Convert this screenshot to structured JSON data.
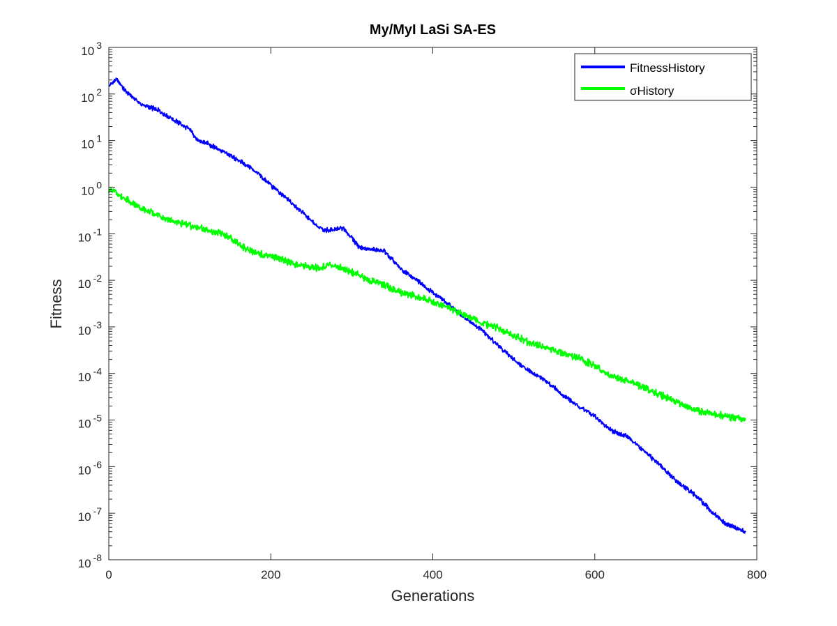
{
  "chart_data": {
    "type": "line",
    "title": "My/MyI LaSi SA-ES",
    "xlabel": "Generations",
    "ylabel": "Fitness",
    "xlim": [
      0,
      800
    ],
    "ylim": [
      1e-08,
      1000
    ],
    "yscale": "log",
    "grid": false,
    "legend_position": "top-right",
    "x_ticks": [
      "0",
      "200",
      "400",
      "600",
      "800"
    ],
    "y_ticks": [
      {
        "base": "10",
        "exp": "-8"
      },
      {
        "base": "10",
        "exp": "-7"
      },
      {
        "base": "10",
        "exp": "-6"
      },
      {
        "base": "10",
        "exp": "-5"
      },
      {
        "base": "10",
        "exp": "-4"
      },
      {
        "base": "10",
        "exp": "-3"
      },
      {
        "base": "10",
        "exp": "-2"
      },
      {
        "base": "10",
        "exp": "-1"
      },
      {
        "base": "10",
        "exp": "0"
      },
      {
        "base": "10",
        "exp": "1"
      },
      {
        "base": "10",
        "exp": "2"
      },
      {
        "base": "10",
        "exp": "3"
      }
    ],
    "series": [
      {
        "name": "FitnessHistory",
        "legend_label": "FitnessHistory",
        "color": "#0000ff",
        "x": [
          0,
          10,
          20,
          40,
          60,
          80,
          100,
          110,
          120,
          140,
          160,
          180,
          200,
          220,
          240,
          260,
          270,
          290,
          300,
          310,
          340,
          360,
          380,
          400,
          420,
          440,
          460,
          480,
          500,
          520,
          540,
          560,
          580,
          600,
          620,
          640,
          660,
          680,
          700,
          720,
          740,
          760,
          786
        ],
        "y": [
          150,
          210,
          120,
          60,
          45,
          28,
          17,
          10,
          9,
          6,
          3.8,
          2.3,
          1.1,
          0.55,
          0.28,
          0.13,
          0.12,
          0.13,
          0.08,
          0.05,
          0.042,
          0.018,
          0.01,
          0.0055,
          0.003,
          0.0015,
          0.0009,
          0.0004,
          0.0002,
          0.00011,
          7e-05,
          3.5e-05,
          2e-05,
          1.2e-05,
          6e-06,
          4.5e-06,
          2.2e-06,
          1.1e-06,
          5e-07,
          2.8e-07,
          1.3e-07,
          6e-08,
          4e-08
        ]
      },
      {
        "name": "σHistory",
        "legend_label": "σHistory",
        "color": "#00ff00",
        "x": [
          0,
          10,
          20,
          40,
          60,
          80,
          100,
          120,
          140,
          160,
          180,
          200,
          220,
          240,
          260,
          270,
          280,
          300,
          320,
          340,
          360,
          380,
          400,
          420,
          440,
          460,
          480,
          500,
          520,
          540,
          560,
          580,
          600,
          620,
          640,
          660,
          680,
          700,
          720,
          740,
          760,
          786
        ],
        "y": [
          0.9,
          0.75,
          0.55,
          0.35,
          0.25,
          0.18,
          0.15,
          0.12,
          0.1,
          0.06,
          0.038,
          0.035,
          0.025,
          0.02,
          0.018,
          0.022,
          0.02,
          0.015,
          0.01,
          0.008,
          0.0055,
          0.0045,
          0.0035,
          0.0025,
          0.0018,
          0.0012,
          0.00095,
          0.00065,
          0.00045,
          0.00035,
          0.00028,
          0.00022,
          0.00014,
          9e-05,
          7e-05,
          5e-05,
          3.5e-05,
          2.5e-05,
          1.8e-05,
          1.4e-05,
          1.2e-05,
          1e-05
        ]
      }
    ]
  }
}
